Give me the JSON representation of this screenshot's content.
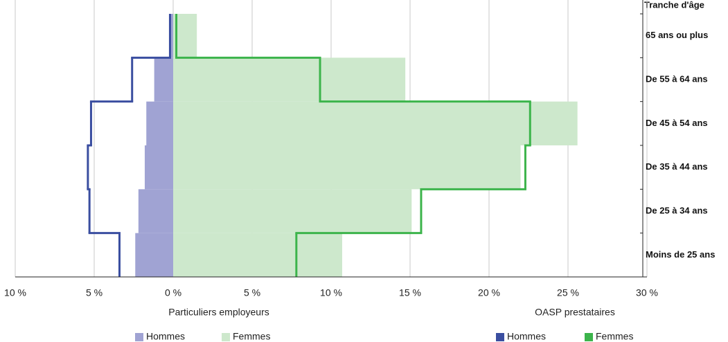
{
  "chart_data": {
    "type": "pyramid",
    "category_title": "Tranche d'âge",
    "categories": [
      "65 ans ou plus",
      "De 55 à 64 ans",
      "De 45 à 54 ans",
      "De 35 à 44 ans",
      "De 25  à 34 ans",
      "Moins de 25 ans"
    ],
    "groups": [
      {
        "name": "Particuliers employeurs",
        "series": [
          {
            "name": "Hommes",
            "style": "bar",
            "color": "#a0a3d3",
            "values": [
              -0.2,
              -1.2,
              -1.7,
              -1.8,
              -2.2,
              -2.4
            ]
          },
          {
            "name": "Femmes",
            "style": "bar",
            "color": "#cde8cc",
            "values": [
              1.5,
              14.7,
              25.6,
              22.0,
              15.1,
              10.7
            ]
          }
        ]
      },
      {
        "name": "OASP prestataires",
        "series": [
          {
            "name": "Hommes",
            "style": "line",
            "color": "#3a4ea0",
            "values": [
              -0.2,
              -2.6,
              -5.2,
              -5.4,
              -5.3,
              -3.4
            ]
          },
          {
            "name": "Femmes",
            "style": "line",
            "color": "#3cb44b",
            "values": [
              0.2,
              9.3,
              22.6,
              22.3,
              15.7,
              7.8
            ]
          }
        ]
      }
    ],
    "xlim": [
      -10,
      30
    ],
    "xticks": [
      {
        "value": -10,
        "label": "10 %"
      },
      {
        "value": -5,
        "label": "5 %"
      },
      {
        "value": 0,
        "label": "0 %"
      },
      {
        "value": 5,
        "label": "5 %"
      },
      {
        "value": 10,
        "label": "10 %"
      },
      {
        "value": 15,
        "label": "15 %"
      },
      {
        "value": 20,
        "label": "20 %"
      },
      {
        "value": 25,
        "label": "25 %"
      },
      {
        "value": 30,
        "label": "30 %"
      }
    ],
    "grid": true
  }
}
